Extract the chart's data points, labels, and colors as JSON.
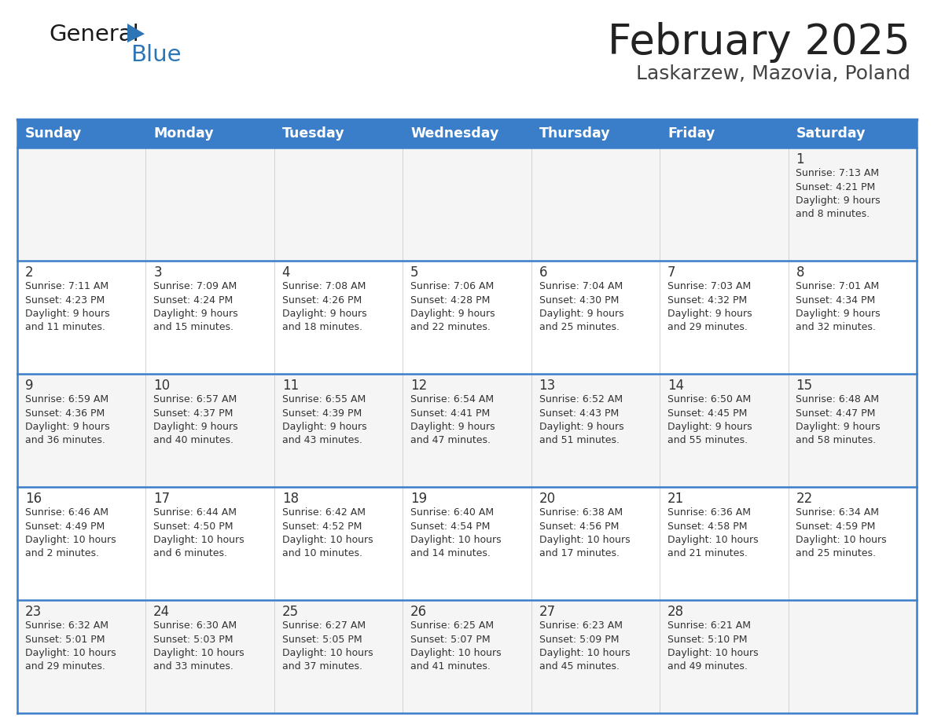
{
  "title": "February 2025",
  "subtitle": "Laskarzew, Mazovia, Poland",
  "header_color": "#3A7DC9",
  "header_text_color": "#FFFFFF",
  "border_color": "#3A7DC9",
  "day_headers": [
    "Sunday",
    "Monday",
    "Tuesday",
    "Wednesday",
    "Thursday",
    "Friday",
    "Saturday"
  ],
  "weeks": [
    [
      {
        "day": "",
        "info": ""
      },
      {
        "day": "",
        "info": ""
      },
      {
        "day": "",
        "info": ""
      },
      {
        "day": "",
        "info": ""
      },
      {
        "day": "",
        "info": ""
      },
      {
        "day": "",
        "info": ""
      },
      {
        "day": "1",
        "info": "Sunrise: 7:13 AM\nSunset: 4:21 PM\nDaylight: 9 hours\nand 8 minutes."
      }
    ],
    [
      {
        "day": "2",
        "info": "Sunrise: 7:11 AM\nSunset: 4:23 PM\nDaylight: 9 hours\nand 11 minutes."
      },
      {
        "day": "3",
        "info": "Sunrise: 7:09 AM\nSunset: 4:24 PM\nDaylight: 9 hours\nand 15 minutes."
      },
      {
        "day": "4",
        "info": "Sunrise: 7:08 AM\nSunset: 4:26 PM\nDaylight: 9 hours\nand 18 minutes."
      },
      {
        "day": "5",
        "info": "Sunrise: 7:06 AM\nSunset: 4:28 PM\nDaylight: 9 hours\nand 22 minutes."
      },
      {
        "day": "6",
        "info": "Sunrise: 7:04 AM\nSunset: 4:30 PM\nDaylight: 9 hours\nand 25 minutes."
      },
      {
        "day": "7",
        "info": "Sunrise: 7:03 AM\nSunset: 4:32 PM\nDaylight: 9 hours\nand 29 minutes."
      },
      {
        "day": "8",
        "info": "Sunrise: 7:01 AM\nSunset: 4:34 PM\nDaylight: 9 hours\nand 32 minutes."
      }
    ],
    [
      {
        "day": "9",
        "info": "Sunrise: 6:59 AM\nSunset: 4:36 PM\nDaylight: 9 hours\nand 36 minutes."
      },
      {
        "day": "10",
        "info": "Sunrise: 6:57 AM\nSunset: 4:37 PM\nDaylight: 9 hours\nand 40 minutes."
      },
      {
        "day": "11",
        "info": "Sunrise: 6:55 AM\nSunset: 4:39 PM\nDaylight: 9 hours\nand 43 minutes."
      },
      {
        "day": "12",
        "info": "Sunrise: 6:54 AM\nSunset: 4:41 PM\nDaylight: 9 hours\nand 47 minutes."
      },
      {
        "day": "13",
        "info": "Sunrise: 6:52 AM\nSunset: 4:43 PM\nDaylight: 9 hours\nand 51 minutes."
      },
      {
        "day": "14",
        "info": "Sunrise: 6:50 AM\nSunset: 4:45 PM\nDaylight: 9 hours\nand 55 minutes."
      },
      {
        "day": "15",
        "info": "Sunrise: 6:48 AM\nSunset: 4:47 PM\nDaylight: 9 hours\nand 58 minutes."
      }
    ],
    [
      {
        "day": "16",
        "info": "Sunrise: 6:46 AM\nSunset: 4:49 PM\nDaylight: 10 hours\nand 2 minutes."
      },
      {
        "day": "17",
        "info": "Sunrise: 6:44 AM\nSunset: 4:50 PM\nDaylight: 10 hours\nand 6 minutes."
      },
      {
        "day": "18",
        "info": "Sunrise: 6:42 AM\nSunset: 4:52 PM\nDaylight: 10 hours\nand 10 minutes."
      },
      {
        "day": "19",
        "info": "Sunrise: 6:40 AM\nSunset: 4:54 PM\nDaylight: 10 hours\nand 14 minutes."
      },
      {
        "day": "20",
        "info": "Sunrise: 6:38 AM\nSunset: 4:56 PM\nDaylight: 10 hours\nand 17 minutes."
      },
      {
        "day": "21",
        "info": "Sunrise: 6:36 AM\nSunset: 4:58 PM\nDaylight: 10 hours\nand 21 minutes."
      },
      {
        "day": "22",
        "info": "Sunrise: 6:34 AM\nSunset: 4:59 PM\nDaylight: 10 hours\nand 25 minutes."
      }
    ],
    [
      {
        "day": "23",
        "info": "Sunrise: 6:32 AM\nSunset: 5:01 PM\nDaylight: 10 hours\nand 29 minutes."
      },
      {
        "day": "24",
        "info": "Sunrise: 6:30 AM\nSunset: 5:03 PM\nDaylight: 10 hours\nand 33 minutes."
      },
      {
        "day": "25",
        "info": "Sunrise: 6:27 AM\nSunset: 5:05 PM\nDaylight: 10 hours\nand 37 minutes."
      },
      {
        "day": "26",
        "info": "Sunrise: 6:25 AM\nSunset: 5:07 PM\nDaylight: 10 hours\nand 41 minutes."
      },
      {
        "day": "27",
        "info": "Sunrise: 6:23 AM\nSunset: 5:09 PM\nDaylight: 10 hours\nand 45 minutes."
      },
      {
        "day": "28",
        "info": "Sunrise: 6:21 AM\nSunset: 5:10 PM\nDaylight: 10 hours\nand 49 minutes."
      },
      {
        "day": "",
        "info": ""
      }
    ]
  ]
}
